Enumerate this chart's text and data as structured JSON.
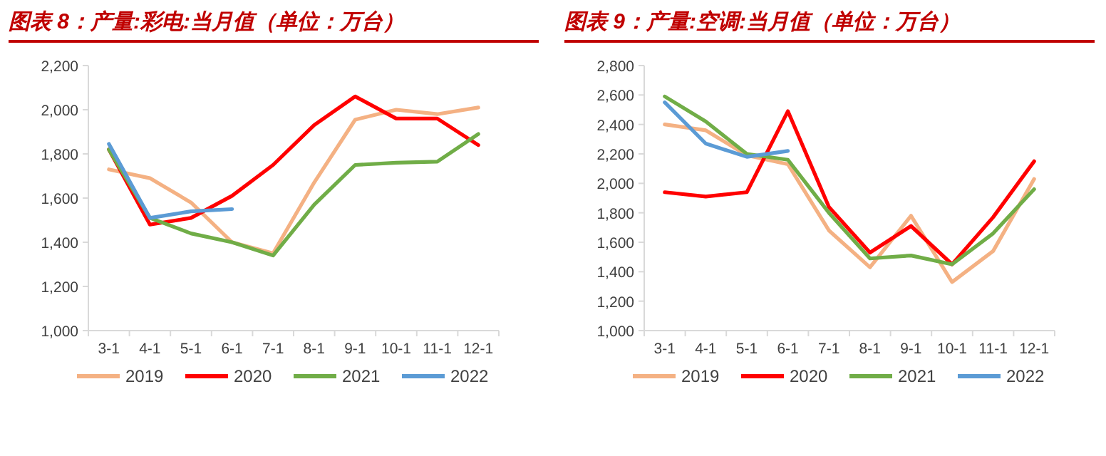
{
  "chart_data": [
    {
      "type": "line",
      "title": "图表 8：产量:彩电:当月值（单位：万台）",
      "categories": [
        "3-1",
        "4-1",
        "5-1",
        "6-1",
        "7-1",
        "8-1",
        "9-1",
        "10-1",
        "11-1",
        "12-1"
      ],
      "series": [
        {
          "name": "2019",
          "color": "#f4b183",
          "values": [
            1730,
            1690,
            1580,
            1400,
            1350,
            1670,
            1955,
            2000,
            1980,
            2010
          ]
        },
        {
          "name": "2020",
          "color": "#ff0000",
          "values": [
            1820,
            1480,
            1510,
            1610,
            1750,
            1930,
            2060,
            1960,
            1960,
            1840
          ]
        },
        {
          "name": "2021",
          "color": "#70ad47",
          "values": [
            1820,
            1510,
            1440,
            1400,
            1340,
            1570,
            1750,
            1760,
            1765,
            1890
          ]
        },
        {
          "name": "2022",
          "color": "#5b9bd5",
          "values": [
            1845,
            1510,
            1540,
            1550,
            null,
            null,
            null,
            null,
            null,
            null
          ]
        }
      ],
      "ylim": [
        1000,
        2200
      ],
      "yticks": [
        {
          "value": 1000,
          "label": "1,000"
        },
        {
          "value": 1200,
          "label": "1,200"
        },
        {
          "value": 1400,
          "label": "1,400"
        },
        {
          "value": 1600,
          "label": "1,600"
        },
        {
          "value": 1800,
          "label": "1,800"
        },
        {
          "value": 2000,
          "label": "2,000"
        },
        {
          "value": 2200,
          "label": "2,200"
        }
      ],
      "legend": "bottom"
    },
    {
      "type": "line",
      "title": "图表 9：产量:空调:当月值（单位：万台）",
      "categories": [
        "3-1",
        "4-1",
        "5-1",
        "6-1",
        "7-1",
        "8-1",
        "9-1",
        "10-1",
        "11-1",
        "12-1"
      ],
      "series": [
        {
          "name": "2019",
          "color": "#f4b183",
          "values": [
            2400,
            2360,
            2190,
            2130,
            1680,
            1430,
            1780,
            1330,
            1540,
            2030
          ]
        },
        {
          "name": "2020",
          "color": "#ff0000",
          "values": [
            1940,
            1910,
            1940,
            2490,
            1840,
            1530,
            1710,
            1450,
            1770,
            2150
          ]
        },
        {
          "name": "2021",
          "color": "#70ad47",
          "values": [
            2590,
            2420,
            2200,
            2160,
            1800,
            1490,
            1510,
            1450,
            1660,
            1960
          ]
        },
        {
          "name": "2022",
          "color": "#5b9bd5",
          "values": [
            2550,
            2270,
            2180,
            2220,
            null,
            null,
            null,
            null,
            null,
            null
          ]
        }
      ],
      "ylim": [
        1000,
        2800
      ],
      "yticks": [
        {
          "value": 1000,
          "label": "1,000"
        },
        {
          "value": 1200,
          "label": "1,200"
        },
        {
          "value": 1400,
          "label": "1,400"
        },
        {
          "value": 1600,
          "label": "1,600"
        },
        {
          "value": 1800,
          "label": "1,800"
        },
        {
          "value": 2000,
          "label": "2,000"
        },
        {
          "value": 2200,
          "label": "2,200"
        },
        {
          "value": 2400,
          "label": "2,400"
        },
        {
          "value": 2600,
          "label": "2,600"
        },
        {
          "value": 2800,
          "label": "2,800"
        }
      ],
      "legend": "bottom"
    }
  ]
}
